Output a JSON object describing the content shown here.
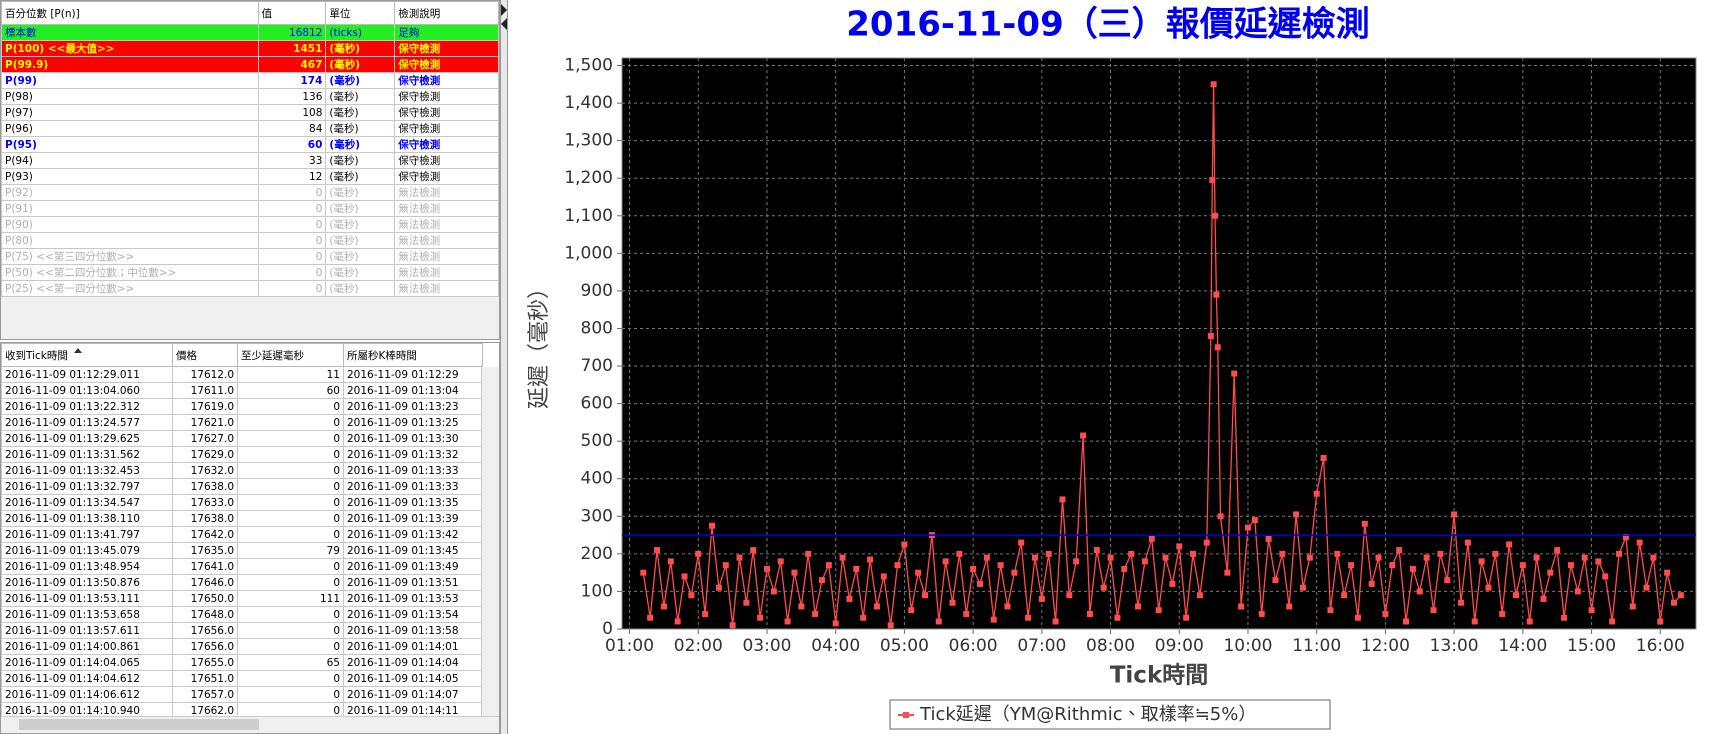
{
  "summary_table": {
    "headers": [
      "百分位數 [P(n)]",
      "值",
      "單位",
      "檢測說明"
    ],
    "rows": [
      {
        "style": "sample",
        "cells": [
          "標本數",
          "16812",
          "(ticks)",
          "足夠"
        ]
      },
      {
        "style": "max",
        "cells": [
          "P(100)  <<最大值>>",
          "1451",
          "(毫秒)",
          "保守檢測"
        ]
      },
      {
        "style": "max",
        "cells": [
          "P(99.9)",
          "467",
          "(毫秒)",
          "保守檢測"
        ]
      },
      {
        "style": "key",
        "cells": [
          "P(99)",
          "174",
          "(毫秒)",
          "保守檢測"
        ]
      },
      {
        "style": "normal",
        "cells": [
          "P(98)",
          "136",
          "(毫秒)",
          "保守檢測"
        ]
      },
      {
        "style": "normal",
        "cells": [
          "P(97)",
          "108",
          "(毫秒)",
          "保守檢測"
        ]
      },
      {
        "style": "normal",
        "cells": [
          "P(96)",
          "84",
          "(毫秒)",
          "保守檢測"
        ]
      },
      {
        "style": "key",
        "cells": [
          "P(95)",
          "60",
          "(毫秒)",
          "保守檢測"
        ]
      },
      {
        "style": "normal",
        "cells": [
          "P(94)",
          "33",
          "(毫秒)",
          "保守檢測"
        ]
      },
      {
        "style": "normal",
        "cells": [
          "P(93)",
          "12",
          "(毫秒)",
          "保守檢測"
        ]
      },
      {
        "style": "disabled",
        "cells": [
          "P(92)",
          "0",
          "(毫秒)",
          "無法檢測"
        ]
      },
      {
        "style": "disabled",
        "cells": [
          "P(91)",
          "0",
          "(毫秒)",
          "無法檢測"
        ]
      },
      {
        "style": "disabled",
        "cells": [
          "P(90)",
          "0",
          "(毫秒)",
          "無法檢測"
        ]
      },
      {
        "style": "disabled",
        "cells": [
          "P(80)",
          "0",
          "(毫秒)",
          "無法檢測"
        ]
      },
      {
        "style": "disabled",
        "cells": [
          "P(75)  <<第三四分位數>>",
          "0",
          "(毫秒)",
          "無法檢測"
        ]
      },
      {
        "style": "disabled",
        "cells": [
          "P(50)  <<第二四分位數；中位數>>",
          "0",
          "(毫秒)",
          "無法檢測"
        ]
      },
      {
        "style": "disabled",
        "cells": [
          "P(25)  <<第一四分位數>>",
          "0",
          "(毫秒)",
          "無法檢測"
        ]
      }
    ]
  },
  "tick_table": {
    "headers": [
      "收到Tick時間",
      "價格",
      "至少延遲毫秒",
      "所屬秒K棒時間"
    ],
    "rows": [
      [
        "2016-11-09 01:12:29.011",
        "17612.0",
        "11",
        "2016-11-09 01:12:29"
      ],
      [
        "2016-11-09 01:13:04.060",
        "17611.0",
        "60",
        "2016-11-09 01:13:04"
      ],
      [
        "2016-11-09 01:13:22.312",
        "17619.0",
        "0",
        "2016-11-09 01:13:23"
      ],
      [
        "2016-11-09 01:13:24.577",
        "17621.0",
        "0",
        "2016-11-09 01:13:25"
      ],
      [
        "2016-11-09 01:13:29.625",
        "17627.0",
        "0",
        "2016-11-09 01:13:30"
      ],
      [
        "2016-11-09 01:13:31.562",
        "17629.0",
        "0",
        "2016-11-09 01:13:32"
      ],
      [
        "2016-11-09 01:13:32.453",
        "17632.0",
        "0",
        "2016-11-09 01:13:33"
      ],
      [
        "2016-11-09 01:13:32.797",
        "17638.0",
        "0",
        "2016-11-09 01:13:33"
      ],
      [
        "2016-11-09 01:13:34.547",
        "17633.0",
        "0",
        "2016-11-09 01:13:35"
      ],
      [
        "2016-11-09 01:13:38.110",
        "17638.0",
        "0",
        "2016-11-09 01:13:39"
      ],
      [
        "2016-11-09 01:13:41.797",
        "17642.0",
        "0",
        "2016-11-09 01:13:42"
      ],
      [
        "2016-11-09 01:13:45.079",
        "17635.0",
        "79",
        "2016-11-09 01:13:45"
      ],
      [
        "2016-11-09 01:13:48.954",
        "17641.0",
        "0",
        "2016-11-09 01:13:49"
      ],
      [
        "2016-11-09 01:13:50.876",
        "17646.0",
        "0",
        "2016-11-09 01:13:51"
      ],
      [
        "2016-11-09 01:13:53.111",
        "17650.0",
        "111",
        "2016-11-09 01:13:53"
      ],
      [
        "2016-11-09 01:13:53.658",
        "17648.0",
        "0",
        "2016-11-09 01:13:54"
      ],
      [
        "2016-11-09 01:13:57.611",
        "17656.0",
        "0",
        "2016-11-09 01:13:58"
      ],
      [
        "2016-11-09 01:14:00.861",
        "17656.0",
        "0",
        "2016-11-09 01:14:01"
      ],
      [
        "2016-11-09 01:14:04.065",
        "17655.0",
        "65",
        "2016-11-09 01:14:04"
      ],
      [
        "2016-11-09 01:14:04.612",
        "17651.0",
        "0",
        "2016-11-09 01:14:05"
      ],
      [
        "2016-11-09 01:14:06.612",
        "17657.0",
        "0",
        "2016-11-09 01:14:07"
      ],
      [
        "2016-11-09 01:14:10.940",
        "17662.0",
        "0",
        "2016-11-09 01:14:11"
      ]
    ]
  },
  "chart_data": {
    "type": "line",
    "title": "2016-11-09（三）報價延遲檢測",
    "xlabel": "Tick時間",
    "ylabel": "延遲（毫秒）",
    "xlim": [
      0.89,
      16.52
    ],
    "ylim": [
      0,
      1520
    ],
    "grid": true,
    "background": "#000000",
    "legend": "bottom",
    "xticks": [
      {
        "value": 1,
        "label": "01:00"
      },
      {
        "value": 2,
        "label": "02:00"
      },
      {
        "value": 3,
        "label": "03:00"
      },
      {
        "value": 4,
        "label": "04:00"
      },
      {
        "value": 5,
        "label": "05:00"
      },
      {
        "value": 6,
        "label": "06:00"
      },
      {
        "value": 7,
        "label": "07:00"
      },
      {
        "value": 8,
        "label": "08:00"
      },
      {
        "value": 9,
        "label": "09:00"
      },
      {
        "value": 10,
        "label": "10:00"
      },
      {
        "value": 11,
        "label": "11:00"
      },
      {
        "value": 12,
        "label": "12:00"
      },
      {
        "value": 13,
        "label": "13:00"
      },
      {
        "value": 14,
        "label": "14:00"
      },
      {
        "value": 15,
        "label": "15:00"
      },
      {
        "value": 16,
        "label": "16:00"
      }
    ],
    "yticks": [
      0,
      100,
      200,
      300,
      400,
      500,
      600,
      700,
      800,
      900,
      {
        "value": 1000,
        "label": "1,000"
      },
      {
        "value": 1100,
        "label": "1,100"
      },
      {
        "value": 1200,
        "label": "1,200"
      },
      {
        "value": 1300,
        "label": "1,300"
      },
      {
        "value": 1400,
        "label": "1,400"
      },
      {
        "value": 1500,
        "label": "1,500"
      }
    ],
    "reference_line": {
      "value": 250,
      "color": "#0000dd"
    },
    "x": [
      1.2,
      1.3,
      1.4,
      1.5,
      1.6,
      1.7,
      1.8,
      1.9,
      2.0,
      2.1,
      2.2,
      2.3,
      2.4,
      2.5,
      2.6,
      2.7,
      2.8,
      2.9,
      3.0,
      3.1,
      3.2,
      3.3,
      3.4,
      3.5,
      3.6,
      3.7,
      3.8,
      3.9,
      4.0,
      4.1,
      4.2,
      4.3,
      4.4,
      4.5,
      4.6,
      4.7,
      4.8,
      4.9,
      5.0,
      5.1,
      5.2,
      5.3,
      5.4,
      5.5,
      5.6,
      5.7,
      5.8,
      5.9,
      6.0,
      6.1,
      6.2,
      6.3,
      6.4,
      6.5,
      6.6,
      6.7,
      6.8,
      6.9,
      7.0,
      7.1,
      7.2,
      7.3,
      7.4,
      7.5,
      7.6,
      7.7,
      7.8,
      7.9,
      8.0,
      8.1,
      8.2,
      8.3,
      8.4,
      8.5,
      8.6,
      8.7,
      8.8,
      8.9,
      9.0,
      9.1,
      9.2,
      9.3,
      9.4,
      9.46,
      9.48,
      9.5,
      9.52,
      9.54,
      9.56,
      9.6,
      9.7,
      9.8,
      9.9,
      10.0,
      10.1,
      10.2,
      10.3,
      10.4,
      10.5,
      10.6,
      10.7,
      10.8,
      10.9,
      11.0,
      11.1,
      11.2,
      11.3,
      11.4,
      11.5,
      11.6,
      11.7,
      11.8,
      11.9,
      12.0,
      12.1,
      12.2,
      12.3,
      12.4,
      12.5,
      12.6,
      12.7,
      12.8,
      12.9,
      13.0,
      13.1,
      13.2,
      13.3,
      13.4,
      13.5,
      13.6,
      13.7,
      13.8,
      13.9,
      14.0,
      14.1,
      14.2,
      14.3,
      14.4,
      14.5,
      14.6,
      14.7,
      14.8,
      14.9,
      15.0,
      15.1,
      15.2,
      15.3,
      15.4,
      15.5,
      15.6,
      15.7,
      15.8,
      15.9,
      16.0,
      16.1,
      16.2,
      16.3
    ],
    "series": [
      {
        "name": "Tick延遲（YM@Rithmic、取樣率≒5%）",
        "color": "#ff4c4c",
        "values": [
          150,
          30,
          210,
          60,
          180,
          20,
          140,
          90,
          200,
          40,
          275,
          110,
          170,
          10,
          190,
          70,
          210,
          30,
          160,
          100,
          180,
          20,
          150,
          60,
          200,
          40,
          130,
          170,
          15,
          190,
          80,
          160,
          30,
          185,
          60,
          140,
          10,
          170,
          225,
          50,
          150,
          90,
          250,
          20,
          180,
          70,
          200,
          40,
          160,
          120,
          190,
          25,
          170,
          60,
          150,
          230,
          30,
          190,
          80,
          200,
          20,
          345,
          90,
          180,
          515,
          40,
          210,
          110,
          190,
          30,
          160,
          200,
          60,
          180,
          240,
          50,
          190,
          120,
          220,
          30,
          200,
          90,
          230,
          780,
          1195,
          1450,
          1100,
          890,
          750,
          300,
          150,
          680,
          60,
          270,
          290,
          40,
          240,
          130,
          200,
          60,
          305,
          110,
          190,
          360,
          455,
          50,
          200,
          90,
          170,
          30,
          280,
          120,
          190,
          40,
          170,
          210,
          20,
          160,
          100,
          190,
          50,
          200,
          130,
          305,
          70,
          230,
          20,
          180,
          110,
          200,
          40,
          225,
          90,
          170,
          20,
          190,
          80,
          150,
          210,
          30,
          170,
          100,
          190,
          50,
          180,
          140,
          20,
          200,
          245,
          60,
          230,
          110,
          190,
          20,
          150,
          70,
          90
        ]
      }
    ]
  }
}
